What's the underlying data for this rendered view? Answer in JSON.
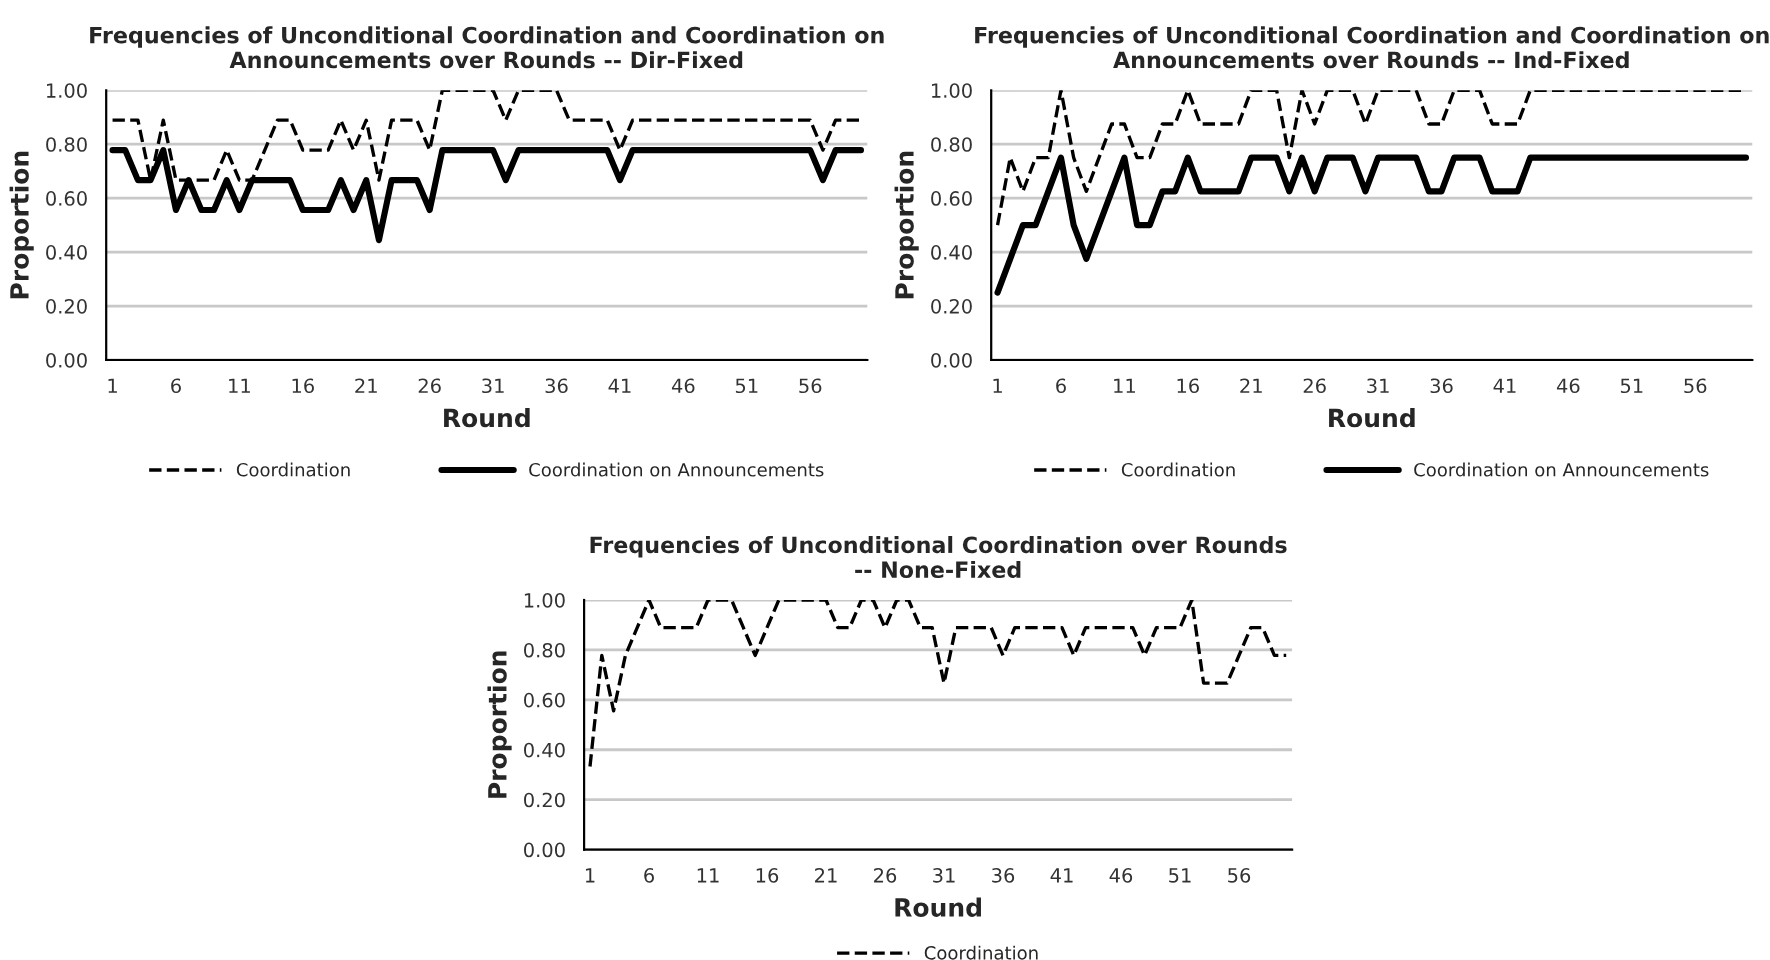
{
  "chart_data": [
    {
      "type": "line",
      "title": "Frequencies of Unconditional Coordination and Coordination on\nAnnouncements over Rounds -- Dir-Fixed",
      "xlabel": "Round",
      "ylabel": "Proportion",
      "categories": [
        "1",
        null,
        null,
        null,
        null,
        "6",
        null,
        null,
        null,
        null,
        "11",
        null,
        null,
        null,
        null,
        "16",
        null,
        null,
        null,
        null,
        "21",
        null,
        null,
        null,
        null,
        "26",
        null,
        null,
        null,
        null,
        "31",
        null,
        null,
        null,
        null,
        "36",
        null,
        null,
        null,
        null,
        "41",
        null,
        null,
        null,
        null,
        "46",
        null,
        null,
        null,
        null,
        "51",
        null,
        null,
        null,
        null,
        "56",
        null,
        null,
        null,
        null
      ],
      "ylim": [
        0,
        1
      ],
      "yticks": [
        {
          "value": 0,
          "label": "0.00"
        },
        {
          "value": 0.2,
          "label": "0.20"
        },
        {
          "value": 0.4,
          "label": "0.40"
        },
        {
          "value": 0.6,
          "label": "0.60"
        },
        {
          "value": 0.8,
          "label": "0.80"
        },
        {
          "value": 1,
          "label": "1.00"
        }
      ],
      "grid": "y",
      "legend": "bottom",
      "marker": "none",
      "series": [
        {
          "name": "Coordination",
          "color": "#000000",
          "line_style": "dashed",
          "values": [
            0.889,
            0.889,
            0.889,
            0.667,
            0.889,
            0.667,
            0.667,
            0.667,
            0.667,
            0.778,
            0.667,
            0.667,
            0.778,
            0.889,
            0.889,
            0.778,
            0.778,
            0.778,
            0.889,
            0.778,
            0.889,
            0.667,
            0.889,
            0.889,
            0.889,
            0.778,
            1,
            1,
            1,
            1,
            1,
            0.889,
            1,
            1,
            1,
            1,
            0.889,
            0.889,
            0.889,
            0.889,
            0.778,
            0.889,
            0.889,
            0.889,
            0.889,
            0.889,
            0.889,
            0.889,
            0.889,
            0.889,
            0.889,
            0.889,
            0.889,
            0.889,
            0.889,
            0.889,
            0.778,
            0.889,
            0.889,
            0.889
          ]
        },
        {
          "name": "Coordination on Announcements",
          "color": "#000000",
          "line_style": "solid",
          "values": [
            0.778,
            0.778,
            0.667,
            0.667,
            0.778,
            0.556,
            0.667,
            0.556,
            0.556,
            0.667,
            0.556,
            0.667,
            0.667,
            0.667,
            0.667,
            0.556,
            0.556,
            0.556,
            0.667,
            0.556,
            0.667,
            0.444,
            0.667,
            0.667,
            0.667,
            0.556,
            0.778,
            0.778,
            0.778,
            0.778,
            0.778,
            0.667,
            0.778,
            0.778,
            0.778,
            0.778,
            0.778,
            0.778,
            0.778,
            0.778,
            0.667,
            0.778,
            0.778,
            0.778,
            0.778,
            0.778,
            0.778,
            0.778,
            0.778,
            0.778,
            0.778,
            0.778,
            0.778,
            0.778,
            0.778,
            0.778,
            0.667,
            0.778,
            0.778,
            0.778
          ]
        }
      ]
    },
    {
      "type": "line",
      "title": "Frequencies of Unconditional Coordination and Coordination on\nAnnouncements over Rounds -- Ind-Fixed",
      "xlabel": "Round",
      "ylabel": "Proportion",
      "categories": [
        "1",
        null,
        null,
        null,
        null,
        "6",
        null,
        null,
        null,
        null,
        "11",
        null,
        null,
        null,
        null,
        "16",
        null,
        null,
        null,
        null,
        "21",
        null,
        null,
        null,
        null,
        "26",
        null,
        null,
        null,
        null,
        "31",
        null,
        null,
        null,
        null,
        "36",
        null,
        null,
        null,
        null,
        "41",
        null,
        null,
        null,
        null,
        "46",
        null,
        null,
        null,
        null,
        "51",
        null,
        null,
        null,
        null,
        "56",
        null,
        null,
        null,
        null
      ],
      "ylim": [
        0,
        1
      ],
      "yticks": [
        {
          "value": 0,
          "label": "0.00"
        },
        {
          "value": 0.2,
          "label": "0.20"
        },
        {
          "value": 0.4,
          "label": "0.40"
        },
        {
          "value": 0.6,
          "label": "0.60"
        },
        {
          "value": 0.8,
          "label": "0.80"
        },
        {
          "value": 1,
          "label": "1.00"
        }
      ],
      "grid": "y",
      "legend": "bottom",
      "marker": "none",
      "series": [
        {
          "name": "Coordination",
          "color": "#000000",
          "line_style": "dashed",
          "values": [
            0.5,
            0.75,
            0.625,
            0.75,
            0.75,
            1,
            0.75,
            0.625,
            0.75,
            0.875,
            0.875,
            0.75,
            0.75,
            0.875,
            0.875,
            1,
            0.875,
            0.875,
            0.875,
            0.875,
            1,
            1,
            1,
            0.75,
            1,
            0.875,
            1,
            1,
            1,
            0.875,
            1,
            1,
            1,
            1,
            0.875,
            0.875,
            1,
            1,
            1,
            0.875,
            0.875,
            0.875,
            1,
            1,
            1,
            1,
            1,
            1,
            1,
            1,
            1,
            1,
            1,
            1,
            1,
            1,
            1,
            1,
            1,
            1
          ]
        },
        {
          "name": "Coordination on Announcements",
          "color": "#000000",
          "line_style": "solid",
          "values": [
            0.25,
            0.375,
            0.5,
            0.5,
            0.625,
            0.75,
            0.5,
            0.375,
            0.5,
            0.625,
            0.75,
            0.5,
            0.5,
            0.625,
            0.625,
            0.75,
            0.625,
            0.625,
            0.625,
            0.625,
            0.75,
            0.75,
            0.75,
            0.625,
            0.75,
            0.625,
            0.75,
            0.75,
            0.75,
            0.625,
            0.75,
            0.75,
            0.75,
            0.75,
            0.625,
            0.625,
            0.75,
            0.75,
            0.75,
            0.625,
            0.625,
            0.625,
            0.75,
            0.75,
            0.75,
            0.75,
            0.75,
            0.75,
            0.75,
            0.75,
            0.75,
            0.75,
            0.75,
            0.75,
            0.75,
            0.75,
            0.75,
            0.75,
            0.75,
            0.75
          ]
        }
      ]
    },
    {
      "type": "line",
      "title": "Frequencies of Unconditional Coordination over Rounds\n-- None-Fixed",
      "xlabel": "Round",
      "ylabel": "Proportion",
      "categories": [
        "1",
        null,
        null,
        null,
        null,
        "6",
        null,
        null,
        null,
        null,
        "11",
        null,
        null,
        null,
        null,
        "16",
        null,
        null,
        null,
        null,
        "21",
        null,
        null,
        null,
        null,
        "26",
        null,
        null,
        null,
        null,
        "31",
        null,
        null,
        null,
        null,
        "36",
        null,
        null,
        null,
        null,
        "41",
        null,
        null,
        null,
        null,
        "46",
        null,
        null,
        null,
        null,
        "51",
        null,
        null,
        null,
        null,
        "56",
        null,
        null,
        null,
        null
      ],
      "ylim": [
        0,
        1
      ],
      "yticks": [
        {
          "value": 0,
          "label": "0.00"
        },
        {
          "value": 0.2,
          "label": "0.20"
        },
        {
          "value": 0.4,
          "label": "0.40"
        },
        {
          "value": 0.6,
          "label": "0.60"
        },
        {
          "value": 0.8,
          "label": "0.80"
        },
        {
          "value": 1,
          "label": "1.00"
        }
      ],
      "grid": "y",
      "legend": "bottom",
      "marker": "none",
      "series": [
        {
          "name": "Coordination",
          "color": "#000000",
          "line_style": "dashed",
          "values": [
            0.333,
            0.778,
            0.556,
            0.778,
            0.889,
            1,
            0.889,
            0.889,
            0.889,
            0.889,
            1,
            1,
            1,
            0.889,
            0.778,
            0.889,
            1,
            1,
            1,
            1,
            1,
            0.889,
            0.889,
            1,
            1,
            0.889,
            1,
            1,
            0.889,
            0.889,
            0.667,
            0.889,
            0.889,
            0.889,
            0.889,
            0.778,
            0.889,
            0.889,
            0.889,
            0.889,
            0.889,
            0.778,
            0.889,
            0.889,
            0.889,
            0.889,
            0.889,
            0.778,
            0.889,
            0.889,
            0.889,
            1,
            0.667,
            0.667,
            0.667,
            0.778,
            0.889,
            0.889,
            0.778,
            0.778
          ]
        }
      ]
    }
  ]
}
